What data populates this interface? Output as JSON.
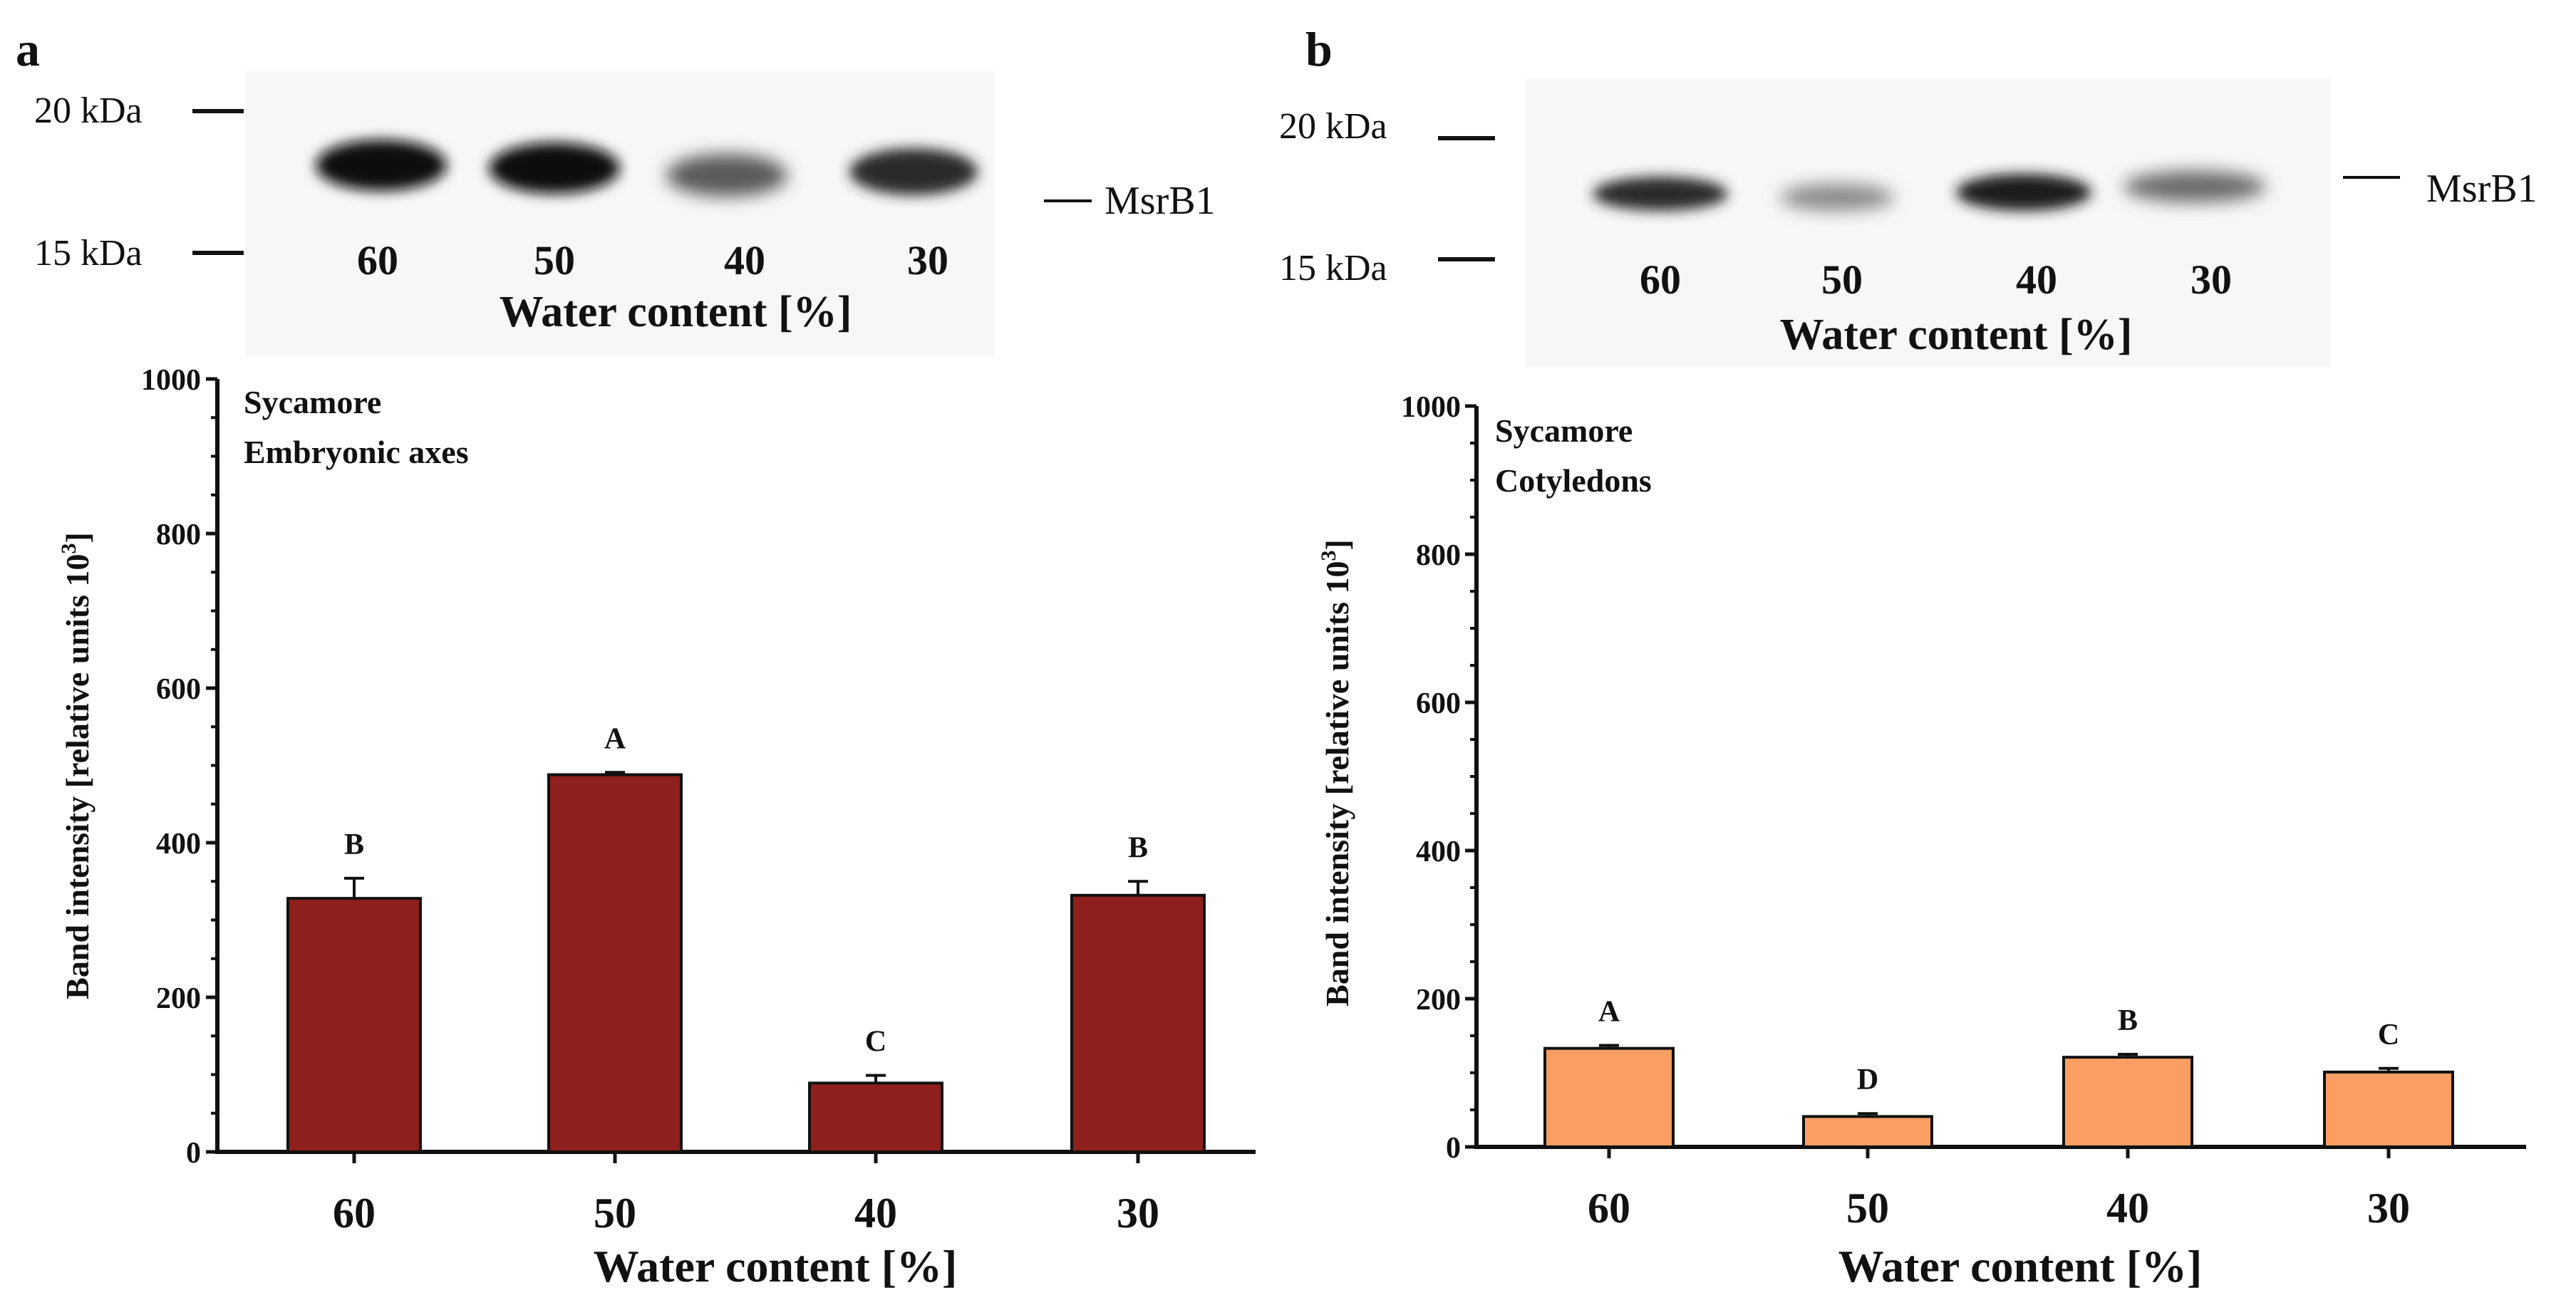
{
  "panels": [
    {
      "letter": "a",
      "blot": {
        "marker_top": "20 kDa",
        "marker_bottom": "15 kDa",
        "band_label": "MsrB1",
        "lanes": [
          "60",
          "50",
          "40",
          "30"
        ],
        "xlabel": "Water content [%]"
      },
      "chart_data": {
        "type": "bar",
        "title": "Sycamore",
        "subtitle": "Embryonic axes",
        "categories": [
          "60",
          "50",
          "40",
          "30"
        ],
        "values": [
          328,
          488,
          89,
          332
        ],
        "errors": [
          26,
          3,
          10,
          18
        ],
        "letters": [
          "B",
          "A",
          "C",
          "B"
        ],
        "xlabel": "Water content [%]",
        "ylabel": "Band intensity [relative units 10",
        "ylabel_sup": "3",
        "ylabel_end": "]",
        "ylim": [
          0,
          1000
        ],
        "yticks": [
          0,
          200,
          400,
          600,
          800,
          1000
        ],
        "color": "#8e1f1c"
      }
    },
    {
      "letter": "b",
      "blot": {
        "marker_top": "20 kDa",
        "marker_bottom": "15 kDa",
        "band_label": "MsrB1",
        "lanes": [
          "60",
          "50",
          "40",
          "30"
        ],
        "xlabel": "Water content [%]"
      },
      "chart_data": {
        "type": "bar",
        "title": "Sycamore",
        "subtitle": "Cotyledons",
        "categories": [
          "60",
          "50",
          "40",
          "30"
        ],
        "values": [
          133,
          41,
          121,
          101
        ],
        "errors": [
          4,
          4,
          4,
          5
        ],
        "letters": [
          "A",
          "D",
          "B",
          "C"
        ],
        "xlabel": "Water content [%]",
        "ylabel": "Band intensity [relative units 10",
        "ylabel_sup": "3",
        "ylabel_end": "]",
        "ylim": [
          0,
          1000
        ],
        "yticks": [
          0,
          200,
          400,
          600,
          800,
          1000
        ],
        "color": "#fa9e63"
      }
    }
  ]
}
